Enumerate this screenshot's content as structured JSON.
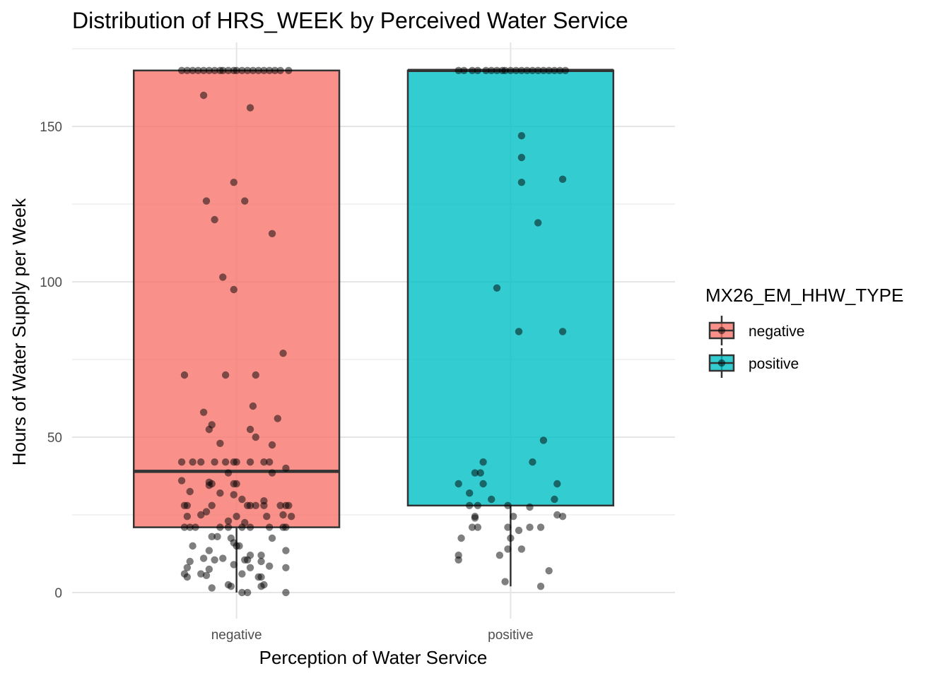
{
  "chart_data": {
    "type": "boxplot",
    "title": "Distribution of HRS_WEEK by Perceived Water Service",
    "xlabel": "Perception of Water Service",
    "ylabel": "Hours of Water Supply per Week",
    "categories": [
      "negative",
      "positive"
    ],
    "y_ticks": [
      0,
      50,
      100,
      150
    ],
    "ylim": [
      -7,
      176
    ],
    "grid": true,
    "legend": {
      "title": "MX26_EM_HHW_TYPE",
      "placement": "right",
      "entries": [
        "negative",
        "positive"
      ]
    },
    "colors": {
      "negative": "#F8766D",
      "positive": "#00BFC4"
    },
    "series": [
      {
        "name": "negative",
        "box": {
          "lower_whisker": 0,
          "q1": 21,
          "median": 39,
          "q3": 168,
          "upper_whisker": 168
        },
        "points": [
          [
            -0.2,
            168
          ],
          [
            -0.18,
            168
          ],
          [
            -0.16,
            168
          ],
          [
            -0.14,
            168
          ],
          [
            -0.12,
            168
          ],
          [
            -0.1,
            168
          ],
          [
            -0.08,
            168
          ],
          [
            -0.06,
            168
          ],
          [
            -0.05,
            168
          ],
          [
            -0.03,
            168
          ],
          [
            -0.01,
            168
          ],
          [
            0.0,
            168
          ],
          [
            0.02,
            168
          ],
          [
            0.04,
            168
          ],
          [
            0.06,
            168
          ],
          [
            0.08,
            168
          ],
          [
            0.1,
            168
          ],
          [
            0.12,
            168
          ],
          [
            0.14,
            168
          ],
          [
            0.16,
            168
          ],
          [
            0.19,
            168
          ],
          [
            -0.12,
            160
          ],
          [
            0.05,
            156
          ],
          [
            -0.01,
            132
          ],
          [
            -0.11,
            126
          ],
          [
            0.03,
            126
          ],
          [
            -0.08,
            120
          ],
          [
            0.13,
            115.5
          ],
          [
            -0.05,
            101.5
          ],
          [
            -0.01,
            97.5
          ],
          [
            0.17,
            77
          ],
          [
            -0.19,
            70
          ],
          [
            -0.04,
            70
          ],
          [
            0.07,
            70
          ],
          [
            0.06,
            60
          ],
          [
            -0.12,
            58
          ],
          [
            0.15,
            56
          ],
          [
            -0.09,
            54
          ],
          [
            -0.1,
            52.5
          ],
          [
            0.05,
            52.5
          ],
          [
            0.07,
            50
          ],
          [
            0.13,
            47.5
          ],
          [
            -0.06,
            48
          ],
          [
            -0.2,
            42
          ],
          [
            -0.16,
            42
          ],
          [
            -0.13,
            42
          ],
          [
            -0.08,
            42
          ],
          [
            -0.04,
            42
          ],
          [
            -0.01,
            42
          ],
          [
            0.0,
            42
          ],
          [
            0.05,
            42
          ],
          [
            0.1,
            42
          ],
          [
            0.12,
            42
          ],
          [
            0.18,
            40
          ],
          [
            -0.03,
            38.5
          ],
          [
            0.13,
            38.5
          ],
          [
            -0.2,
            36
          ],
          [
            -0.1,
            35.5
          ],
          [
            -0.09,
            35
          ],
          [
            -0.1,
            34.5
          ],
          [
            -0.01,
            35
          ],
          [
            0.0,
            35
          ],
          [
            -0.17,
            32.5
          ],
          [
            -0.06,
            32
          ],
          [
            -0.01,
            31.5
          ],
          [
            0.02,
            30
          ],
          [
            0.1,
            29.5
          ],
          [
            -0.19,
            28
          ],
          [
            -0.18,
            28
          ],
          [
            -0.09,
            28
          ],
          [
            0.04,
            28
          ],
          [
            0.05,
            28
          ],
          [
            0.07,
            28
          ],
          [
            0.1,
            28
          ],
          [
            0.16,
            28
          ],
          [
            0.18,
            28
          ],
          [
            0.19,
            28
          ],
          [
            -0.11,
            26
          ],
          [
            -0.13,
            25
          ],
          [
            -0.18,
            24.5
          ],
          [
            0.0,
            24.5
          ],
          [
            0.11,
            24.5
          ],
          [
            0.17,
            25
          ],
          [
            0.2,
            24.5
          ],
          [
            -0.03,
            23
          ],
          [
            0.03,
            22.5
          ],
          [
            -0.19,
            21
          ],
          [
            -0.17,
            21
          ],
          [
            -0.15,
            21
          ],
          [
            -0.06,
            21
          ],
          [
            -0.03,
            21
          ],
          [
            0.02,
            21
          ],
          [
            0.05,
            21
          ],
          [
            0.12,
            21
          ],
          [
            0.17,
            21
          ],
          [
            0.18,
            21
          ],
          [
            -0.09,
            18
          ],
          [
            -0.07,
            18
          ],
          [
            -0.02,
            17.5
          ],
          [
            0.13,
            17.5
          ],
          [
            -0.01,
            16
          ],
          [
            -0.16,
            15
          ],
          [
            -0.1,
            13.5
          ],
          [
            0.0,
            15
          ],
          [
            0.01,
            15
          ],
          [
            0.18,
            13.5
          ],
          [
            0.05,
            12
          ],
          [
            0.09,
            12
          ],
          [
            -0.12,
            11
          ],
          [
            -0.08,
            10.5
          ],
          [
            -0.05,
            11
          ],
          [
            0.03,
            10.5
          ],
          [
            0.04,
            10.5
          ],
          [
            0.09,
            10
          ],
          [
            -0.17,
            10
          ],
          [
            -0.18,
            8
          ],
          [
            -0.1,
            7.5
          ],
          [
            -0.01,
            9
          ],
          [
            0.05,
            8
          ],
          [
            0.12,
            8.5
          ],
          [
            0.18,
            8
          ],
          [
            -0.19,
            6
          ],
          [
            -0.13,
            6
          ],
          [
            -0.11,
            5.5
          ],
          [
            0.02,
            6
          ],
          [
            0.08,
            5
          ],
          [
            0.09,
            5
          ],
          [
            -0.18,
            5
          ],
          [
            -0.03,
            2.5
          ],
          [
            -0.02,
            2
          ],
          [
            0.1,
            2.5
          ],
          [
            -0.09,
            1.5
          ],
          [
            0.09,
            2
          ],
          [
            0.02,
            0
          ],
          [
            0.04,
            0
          ],
          [
            0.18,
            0
          ]
        ]
      },
      {
        "name": "positive",
        "box": {
          "lower_whisker": 2,
          "q1": 28,
          "median": 168,
          "q3": 168,
          "upper_whisker": 168
        },
        "points": [
          [
            -0.19,
            168
          ],
          [
            -0.17,
            168
          ],
          [
            -0.14,
            168
          ],
          [
            -0.12,
            168
          ],
          [
            -0.09,
            168
          ],
          [
            -0.07,
            168
          ],
          [
            -0.05,
            168
          ],
          [
            -0.03,
            168
          ],
          [
            -0.02,
            168
          ],
          [
            0.0,
            168
          ],
          [
            0.02,
            168
          ],
          [
            0.04,
            168
          ],
          [
            0.06,
            168
          ],
          [
            0.08,
            168
          ],
          [
            0.1,
            168
          ],
          [
            0.12,
            168
          ],
          [
            0.14,
            168
          ],
          [
            0.16,
            168
          ],
          [
            0.18,
            168
          ],
          [
            0.2,
            168
          ],
          [
            0.04,
            147
          ],
          [
            0.04,
            140
          ],
          [
            0.04,
            132
          ],
          [
            0.19,
            133
          ],
          [
            0.1,
            119
          ],
          [
            -0.05,
            98
          ],
          [
            0.03,
            84
          ],
          [
            0.19,
            84
          ],
          [
            0.12,
            49
          ],
          [
            -0.1,
            42
          ],
          [
            0.08,
            42
          ],
          [
            -0.13,
            38.5
          ],
          [
            -0.11,
            38.5
          ],
          [
            -0.19,
            35
          ],
          [
            -0.1,
            35
          ],
          [
            0.17,
            35
          ],
          [
            -0.15,
            32
          ],
          [
            -0.07,
            30
          ],
          [
            0.16,
            30
          ],
          [
            -0.15,
            28
          ],
          [
            -0.12,
            28
          ],
          [
            -0.01,
            28
          ],
          [
            0.07,
            27.5
          ],
          [
            0.17,
            25
          ],
          [
            0.19,
            24.5
          ],
          [
            -0.13,
            24.5
          ],
          [
            -0.13,
            24
          ],
          [
            0.01,
            24.5
          ],
          [
            -0.14,
            21
          ],
          [
            -0.12,
            21
          ],
          [
            -0.01,
            21
          ],
          [
            0.03,
            20
          ],
          [
            0.07,
            21
          ],
          [
            0.11,
            21
          ],
          [
            -0.18,
            17.5
          ],
          [
            0.0,
            17.5
          ],
          [
            -0.01,
            14
          ],
          [
            0.04,
            14
          ],
          [
            -0.19,
            12
          ],
          [
            -0.19,
            10.5
          ],
          [
            -0.04,
            12
          ],
          [
            0.14,
            7
          ],
          [
            -0.02,
            3.5
          ],
          [
            0.11,
            2
          ]
        ]
      }
    ]
  }
}
